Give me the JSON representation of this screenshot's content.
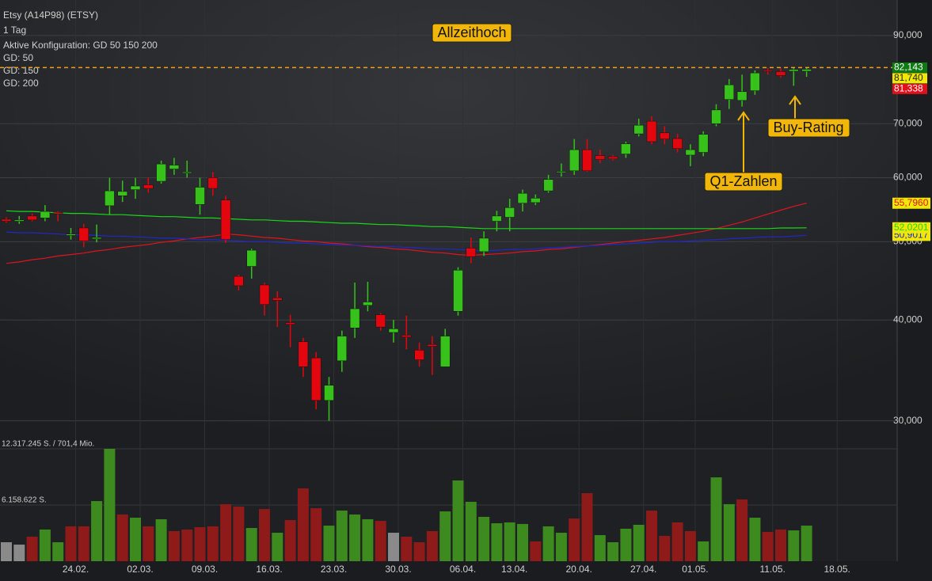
{
  "chart_data": {
    "type": "candlestick",
    "header": [
      "Etsy (A14P98) (ETSY)",
      "1 Tag",
      "Aktive Konfiguration: GD 50 150 200"
    ],
    "annotations": [
      "Allzeithoch",
      "Q1-Zahlen",
      "Buy-Rating"
    ],
    "categories": [
      null,
      null,
      null,
      null,
      null,
      "24.02.",
      null,
      null,
      null,
      null,
      "02.03.",
      null,
      null,
      null,
      null,
      "09.03.",
      null,
      null,
      null,
      null,
      "16.03.",
      null,
      null,
      null,
      null,
      "23.03.",
      null,
      null,
      null,
      null,
      "30.03.",
      null,
      null,
      null,
      null,
      "06.04.",
      null,
      null,
      null,
      "13.04.",
      null,
      null,
      null,
      null,
      "20.04.",
      null,
      null,
      null,
      null,
      "27.04.",
      null,
      null,
      null,
      "01.05.",
      null,
      null,
      null,
      null,
      null,
      "11.05.",
      null,
      null,
      null,
      null,
      "18.05."
    ],
    "open": [
      53.3,
      53.0,
      53.8,
      53.5,
      54.3,
      50.9,
      52.0,
      50.4,
      55.4,
      57.0,
      58.0,
      58.8,
      59.4,
      61.5,
      60.8,
      55.6,
      60.0,
      56.3,
      45.3,
      46.6,
      44.2,
      42.6,
      39.7,
      37.6,
      35.9,
      31.8,
      35.6,
      39.1,
      41.7,
      40.6,
      38.6,
      38.3,
      36.7,
      37.3,
      35.0,
      41.0,
      49.1,
      48.6,
      53.0,
      53.6,
      55.8,
      55.9,
      57.8,
      60.9,
      61.2,
      65.0,
      63.9,
      63.7,
      64.2,
      68.0,
      70.5,
      68.2,
      67.1,
      64.0,
      64.5,
      70.0,
      75.0,
      74.8,
      76.9,
      81.5,
      81.2,
      81.3,
      81.3,
      null,
      null
    ],
    "high": [
      53.6,
      53.8,
      54.2,
      55.5,
      54.5,
      52.0,
      52.6,
      52.5,
      60.0,
      59.5,
      60.0,
      60.0,
      63.0,
      63.5,
      63.0,
      60.0,
      61.0,
      57.0,
      45.5,
      49.0,
      44.5,
      43.4,
      40.6,
      38.0,
      36.5,
      34.0,
      38.8,
      44.5,
      44.6,
      40.8,
      40.0,
      40.5,
      37.5,
      38.2,
      39.0,
      46.5,
      50.6,
      51.5,
      54.6,
      56.5,
      58.0,
      57.2,
      60.5,
      62.5,
      67.0,
      67.0,
      65.0,
      64.0,
      66.5,
      71.0,
      71.5,
      69.5,
      68.0,
      66.0,
      68.5,
      74.0,
      79.5,
      80.5,
      81.5,
      82.1,
      82.0,
      82.1,
      82.1,
      null,
      null
    ],
    "low": [
      52.8,
      52.6,
      53.0,
      53.0,
      53.0,
      50.3,
      49.2,
      49.9,
      54.0,
      56.0,
      56.5,
      57.5,
      59.0,
      60.5,
      60.0,
      54.0,
      57.0,
      49.8,
      43.5,
      45.0,
      40.5,
      39.2,
      37.0,
      34.0,
      31.0,
      30.0,
      34.5,
      38.0,
      41.0,
      38.8,
      37.5,
      36.8,
      35.0,
      34.2,
      35.0,
      40.5,
      47.0,
      48.0,
      51.5,
      51.5,
      54.5,
      55.5,
      57.5,
      60.2,
      60.5,
      61.0,
      62.5,
      63.0,
      63.5,
      67.5,
      66.0,
      66.0,
      64.5,
      62.0,
      63.8,
      69.5,
      73.0,
      73.5,
      76.0,
      80.5,
      79.8,
      78.0,
      80.0,
      null,
      null
    ],
    "close": [
      53.0,
      53.2,
      53.2,
      54.5,
      54.1,
      51.1,
      50.1,
      50.6,
      57.8,
      57.7,
      58.6,
      58.2,
      62.4,
      62.2,
      61.0,
      58.4,
      58.2,
      50.3,
      44.1,
      48.8,
      41.8,
      42.3,
      39.5,
      35.0,
      31.8,
      33.2,
      38.2,
      41.3,
      42.1,
      39.2,
      39.0,
      38.1,
      35.7,
      37.1,
      38.2,
      46.1,
      47.9,
      50.5,
      53.8,
      55.1,
      57.4,
      56.6,
      59.7,
      61.1,
      65.0,
      61.2,
      63.2,
      63.3,
      66.1,
      69.7,
      66.5,
      67.0,
      65.2,
      65.0,
      67.9,
      72.8,
      78.2,
      76.7,
      80.9,
      81.2,
      80.3,
      81.7,
      81.74,
      null,
      null
    ],
    "up_color": "#36c21a",
    "down_color": "#e3060e",
    "series": [
      {
        "name": "GD: 50",
        "color": "#e0141e",
        "last_label": "55,7960",
        "values": [
          47.0,
          47.2,
          47.5,
          47.7,
          48.0,
          48.2,
          48.4,
          48.7,
          48.9,
          49.2,
          49.4,
          49.6,
          49.9,
          50.1,
          50.4,
          50.6,
          50.8,
          51.1,
          51.0,
          50.8,
          50.6,
          50.5,
          50.3,
          50.1,
          50.0,
          49.8,
          49.7,
          49.5,
          49.3,
          49.2,
          49.0,
          48.9,
          48.7,
          48.5,
          48.4,
          48.2,
          48.1,
          48.2,
          48.3,
          48.4,
          48.6,
          48.7,
          48.9,
          49.0,
          49.2,
          49.4,
          49.6,
          49.8,
          50.0,
          50.2,
          50.4,
          50.6,
          50.9,
          51.2,
          51.5,
          51.9,
          52.4,
          52.9,
          53.5,
          54.1,
          54.7,
          55.3,
          55.796,
          null,
          null
        ]
      },
      {
        "name": "GD: 150",
        "color": "#2028c8",
        "last_label": "50,9017",
        "values": [
          51.4,
          51.3,
          51.3,
          51.2,
          51.1,
          51.0,
          51.0,
          50.9,
          50.8,
          50.8,
          50.7,
          50.6,
          50.5,
          50.5,
          50.4,
          50.3,
          50.3,
          50.2,
          50.1,
          50.0,
          50.0,
          49.9,
          49.8,
          49.8,
          49.7,
          49.6,
          49.5,
          49.5,
          49.4,
          49.3,
          49.3,
          49.2,
          49.1,
          49.0,
          49.0,
          48.9,
          48.8,
          48.7,
          48.8,
          48.9,
          48.9,
          49.0,
          49.1,
          49.2,
          49.3,
          49.4,
          49.5,
          49.6,
          49.7,
          49.8,
          49.9,
          50.0,
          50.0,
          50.1,
          50.2,
          50.3,
          50.4,
          50.5,
          50.6,
          50.7,
          50.7,
          50.8,
          50.9017,
          null,
          null
        ]
      },
      {
        "name": "GD: 200",
        "color": "#18d818",
        "last_label": "52,0201",
        "values": [
          54.6,
          54.5,
          54.5,
          54.4,
          54.3,
          54.2,
          54.2,
          54.1,
          54.0,
          54.0,
          53.9,
          53.8,
          53.7,
          53.7,
          53.6,
          53.5,
          53.5,
          53.4,
          53.3,
          53.2,
          53.2,
          53.1,
          53.0,
          53.0,
          52.9,
          52.8,
          52.7,
          52.7,
          52.6,
          52.5,
          52.5,
          52.4,
          52.3,
          52.2,
          52.2,
          52.1,
          52.0,
          51.9,
          51.9,
          51.9,
          51.9,
          51.9,
          51.9,
          51.9,
          51.9,
          51.9,
          51.9,
          51.9,
          51.9,
          51.9,
          51.9,
          51.9,
          51.9,
          51.9,
          51.9,
          51.9,
          51.9,
          51.9,
          51.9,
          51.9,
          52.0,
          52.0,
          52.0201,
          null,
          null
        ]
      }
    ],
    "ylim": [
      27.7,
      99.6
    ],
    "log_scale": true,
    "yticks": [
      {
        "value": 30,
        "label": "30,000"
      },
      {
        "value": 40,
        "label": "40,000"
      },
      {
        "value": 50,
        "label": "50,000"
      },
      {
        "value": 60,
        "label": "60,000"
      },
      {
        "value": 70,
        "label": "70,000"
      },
      {
        "value": 90,
        "label": "90,000"
      }
    ],
    "markers": [
      {
        "value": 82.143,
        "label": "82,143",
        "color": "#0d7a12",
        "text_color": "#ffffff",
        "line": "dashed"
      },
      {
        "value": 81.74,
        "label": "81,740",
        "color": "#f0e800",
        "text_color": "#222222"
      },
      {
        "value": 81.338,
        "label": "81,338",
        "color": "#e0101a",
        "text_color": "#ffffff"
      }
    ],
    "line_color": "#f0a020",
    "volume": {
      "values": [
        2080000,
        1820000,
        2690000,
        3470000,
        2080000,
        3820000,
        3820000,
        6590000,
        12317245,
        5120000,
        4770000,
        3820000,
        4600000,
        3300000,
        3470000,
        3730000,
        3820000,
        6250000,
        5990000,
        3640000,
        5720000,
        3120000,
        4510000,
        7980000,
        5810000,
        3900000,
        5550000,
        5120000,
        4600000,
        4420000,
        3120000,
        2690000,
        2080000,
        3300000,
        5460000,
        8850000,
        6510000,
        4860000,
        4160000,
        4250000,
        4080000,
        2170000,
        3820000,
        3120000,
        4680000,
        7460000,
        2860000,
        2080000,
        3560000,
        3990000,
        5550000,
        2780000,
        4250000,
        3300000,
        2170000,
        9190000,
        6250000,
        6770000,
        4770000,
        3210000,
        3470000,
        3380000,
        3900000,
        null,
        null
      ],
      "direction": [
        "none",
        "none",
        "down",
        "up",
        "up",
        "down",
        "down",
        "up",
        "up",
        "down",
        "up",
        "down",
        "up",
        "down",
        "down",
        "down",
        "down",
        "down",
        "down",
        "up",
        "down",
        "up",
        "down",
        "down",
        "down",
        "up",
        "up",
        "up",
        "up",
        "down",
        "none",
        "down",
        "down",
        "down",
        "up",
        "up",
        "up",
        "up",
        "up",
        "up",
        "up",
        "down",
        "up",
        "up",
        "down",
        "down",
        "up",
        "up",
        "up",
        "up",
        "down",
        "down",
        "down",
        "down",
        "up",
        "up",
        "up",
        "down",
        "up",
        "down",
        "down",
        "up",
        "up",
        null,
        null
      ],
      "colors": {
        "up": "#3d8a1f",
        "down": "#8e1a1a",
        "none": "#8a8a8a"
      },
      "ylim": [
        0,
        12317245
      ],
      "yticks": [
        {
          "value": 12317245,
          "label": "12.317.245 S. / 701,4 Mio."
        },
        {
          "value": 6158622,
          "label": "6.158.622 S."
        }
      ]
    }
  }
}
